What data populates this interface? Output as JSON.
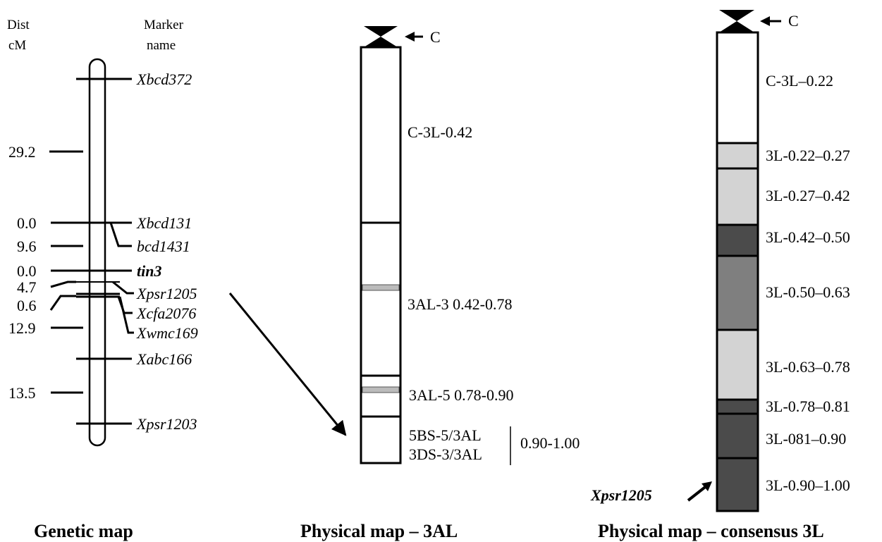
{
  "genetic_map": {
    "title": "Genetic map",
    "header_dist": [
      "Dist",
      "cM"
    ],
    "header_marker": [
      "Marker",
      "name"
    ],
    "distances": [
      "29.2",
      "0.0",
      "9.6",
      "0.0",
      "4.7",
      "0.6",
      "12.9",
      "13.5"
    ],
    "markers": [
      "Xbcd372",
      "Xbcd131",
      "bcd1431",
      "tin3",
      "Xpsr1205",
      "Xcfa2076",
      "Xwmc169",
      "Xabc166",
      "Xpsr1203"
    ]
  },
  "physical_3al": {
    "title": "Physical map – 3AL",
    "centromere_label": "C",
    "bins": [
      "C-3L-0.42",
      "3AL-3 0.42-0.78",
      "3AL-5 0.78-0.90"
    ],
    "last_bin_lines": [
      "5BS-5/3AL",
      "3DS-3/3AL"
    ],
    "last_bin_range": "0.90-1.00"
  },
  "physical_consensus": {
    "title": "Physical map – consensus 3L",
    "centromere_label": "C",
    "marker_label": "Xpsr1205",
    "bins": [
      {
        "label": "C-3L–0.22",
        "color": "#ffffff"
      },
      {
        "label": "3L-0.22–0.27",
        "color": "#d3d3d3"
      },
      {
        "label": "3L-0.27–0.42",
        "color": "#d3d3d3"
      },
      {
        "label": "3L-0.42–0.50",
        "color": "#4b4b4b"
      },
      {
        "label": "3L-0.50–0.63",
        "color": "#7f7f7f"
      },
      {
        "label": "3L-0.63–0.78",
        "color": "#d3d3d3"
      },
      {
        "label": "3L-0.78–0.81",
        "color": "#4b4b4b"
      },
      {
        "label": "3L-081–0.90",
        "color": "#4b4b4b"
      },
      {
        "label": "3L-0.90–1.00",
        "color": "#4b4b4b"
      }
    ]
  }
}
